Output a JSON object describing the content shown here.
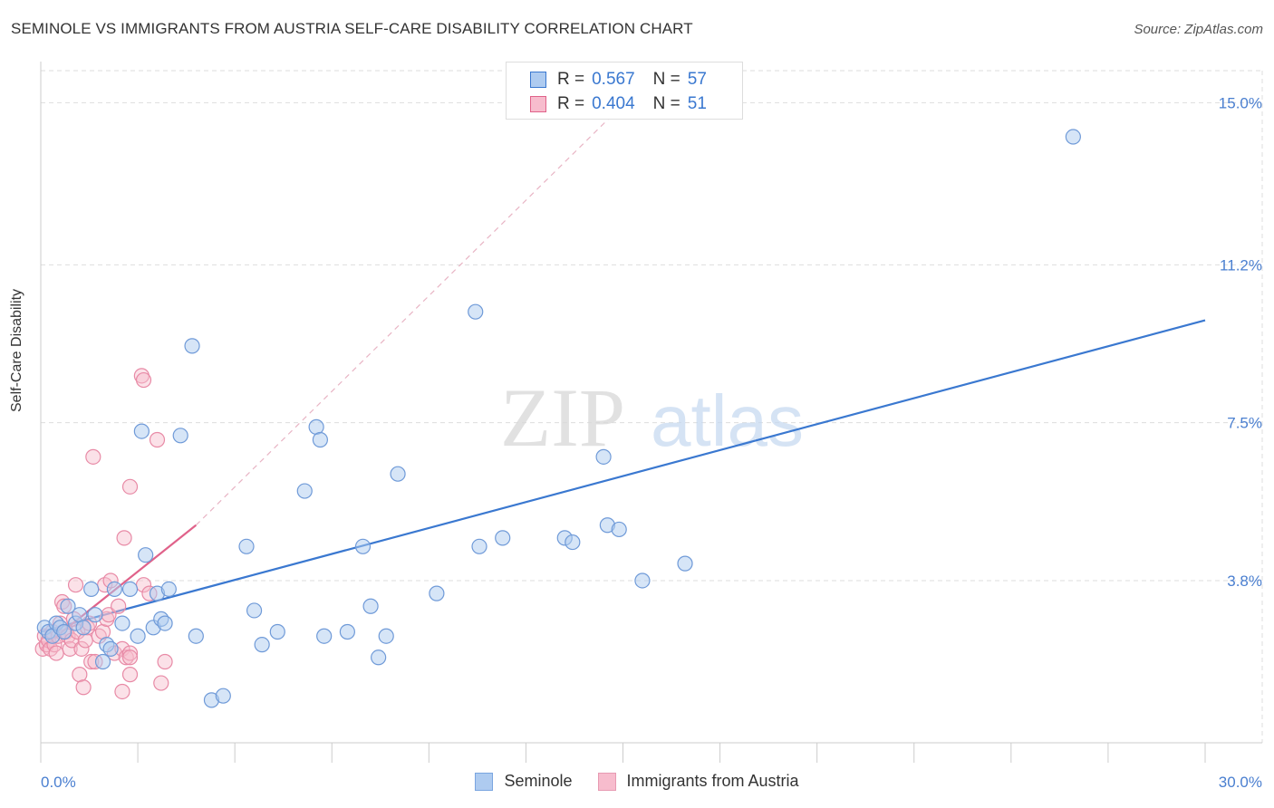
{
  "header": {
    "title": "SEMINOLE VS IMMIGRANTS FROM AUSTRIA SELF-CARE DISABILITY CORRELATION CHART",
    "source": "Source: ZipAtlas.com"
  },
  "watermark": {
    "zip": "ZIP",
    "atlas": "atlas"
  },
  "legend": {
    "items": [
      {
        "r_label": "R = ",
        "r_value": "0.567",
        "n_label": "N = ",
        "n_value": "57"
      },
      {
        "r_label": "R = ",
        "r_value": "0.404",
        "n_label": "N = ",
        "n_value": "51"
      }
    ]
  },
  "bottom_legend": [
    "Seminole",
    "Immigrants from Austria"
  ],
  "colors": {
    "blue": "#3a78d0",
    "blue_fill": "#aecbf0",
    "pink": "#e0628a",
    "pink_fill": "#f7bccd",
    "grid": "#dddddd",
    "tick_label": "#4a7fd0"
  },
  "chart_data": {
    "type": "scatter",
    "title": "SEMINOLE VS IMMIGRANTS FROM AUSTRIA SELF-CARE DISABILITY CORRELATION CHART",
    "xlabel": "",
    "ylabel": "Self-Care Disability",
    "xlim": [
      0,
      30
    ],
    "ylim": [
      0,
      15.75
    ],
    "x_tick_labels": [
      "0.0%",
      "30.0%"
    ],
    "y_ticks": [
      3.8,
      7.5,
      11.2,
      15.0
    ],
    "y_tick_labels": [
      "3.8%",
      "7.5%",
      "11.2%",
      "15.0%"
    ],
    "series": [
      {
        "name": "Seminole",
        "r": 0.567,
        "n": 57,
        "trend": {
          "x": [
            0,
            30
          ],
          "y": [
            2.6,
            9.9
          ]
        },
        "points": [
          [
            0.1,
            2.7
          ],
          [
            0.2,
            2.6
          ],
          [
            0.3,
            2.5
          ],
          [
            0.4,
            2.8
          ],
          [
            0.5,
            2.7
          ],
          [
            0.6,
            2.6
          ],
          [
            0.7,
            3.2
          ],
          [
            0.9,
            2.8
          ],
          [
            1.0,
            3.0
          ],
          [
            1.1,
            2.7
          ],
          [
            1.3,
            3.6
          ],
          [
            1.4,
            3.0
          ],
          [
            1.6,
            1.9
          ],
          [
            1.7,
            2.3
          ],
          [
            1.8,
            2.2
          ],
          [
            1.9,
            3.6
          ],
          [
            2.1,
            2.8
          ],
          [
            2.3,
            3.6
          ],
          [
            2.5,
            2.5
          ],
          [
            2.6,
            7.3
          ],
          [
            2.7,
            4.4
          ],
          [
            2.9,
            2.7
          ],
          [
            3.0,
            3.5
          ],
          [
            3.1,
            2.9
          ],
          [
            3.2,
            2.8
          ],
          [
            3.3,
            3.6
          ],
          [
            3.6,
            7.2
          ],
          [
            3.9,
            9.3
          ],
          [
            4.0,
            2.5
          ],
          [
            4.4,
            1.0
          ],
          [
            4.7,
            1.1
          ],
          [
            5.3,
            4.6
          ],
          [
            5.5,
            3.1
          ],
          [
            5.7,
            2.3
          ],
          [
            6.1,
            2.6
          ],
          [
            6.8,
            5.9
          ],
          [
            7.1,
            7.4
          ],
          [
            7.2,
            7.1
          ],
          [
            7.3,
            2.5
          ],
          [
            7.9,
            2.6
          ],
          [
            8.3,
            4.6
          ],
          [
            8.5,
            3.2
          ],
          [
            8.7,
            2.0
          ],
          [
            8.9,
            2.5
          ],
          [
            9.2,
            6.3
          ],
          [
            10.2,
            3.5
          ],
          [
            11.2,
            10.1
          ],
          [
            11.3,
            4.6
          ],
          [
            11.9,
            4.8
          ],
          [
            13.5,
            4.8
          ],
          [
            13.7,
            4.7
          ],
          [
            14.5,
            6.7
          ],
          [
            14.6,
            5.1
          ],
          [
            14.9,
            5.0
          ],
          [
            15.5,
            3.8
          ],
          [
            16.6,
            4.2
          ],
          [
            26.6,
            14.2
          ]
        ]
      },
      {
        "name": "Immigrants from Austria",
        "r": 0.404,
        "n": 51,
        "trend": {
          "x": [
            0,
            4.0
          ],
          "y": [
            2.2,
            5.1
          ]
        },
        "trend_extended": {
          "x": [
            4.0,
            15.5
          ],
          "y": [
            5.1,
            15.4
          ]
        },
        "points": [
          [
            0.05,
            2.2
          ],
          [
            0.1,
            2.5
          ],
          [
            0.15,
            2.3
          ],
          [
            0.2,
            2.4
          ],
          [
            0.25,
            2.2
          ],
          [
            0.3,
            2.6
          ],
          [
            0.35,
            2.3
          ],
          [
            0.4,
            2.1
          ],
          [
            0.45,
            2.5
          ],
          [
            0.5,
            2.8
          ],
          [
            0.55,
            3.3
          ],
          [
            0.6,
            3.2
          ],
          [
            0.65,
            2.6
          ],
          [
            0.7,
            2.5
          ],
          [
            0.75,
            2.2
          ],
          [
            0.8,
            2.4
          ],
          [
            0.85,
            2.9
          ],
          [
            0.9,
            3.7
          ],
          [
            0.95,
            2.6
          ],
          [
            1.0,
            1.6
          ],
          [
            1.05,
            2.2
          ],
          [
            1.1,
            1.3
          ],
          [
            1.15,
            2.4
          ],
          [
            1.2,
            2.7
          ],
          [
            1.25,
            2.8
          ],
          [
            1.3,
            1.9
          ],
          [
            1.35,
            6.7
          ],
          [
            1.4,
            1.9
          ],
          [
            1.5,
            2.5
          ],
          [
            1.6,
            2.6
          ],
          [
            1.65,
            3.7
          ],
          [
            1.7,
            2.9
          ],
          [
            1.75,
            3.0
          ],
          [
            1.8,
            3.8
          ],
          [
            1.9,
            2.1
          ],
          [
            2.0,
            3.2
          ],
          [
            2.1,
            2.2
          ],
          [
            2.2,
            2.0
          ],
          [
            2.1,
            1.2
          ],
          [
            2.15,
            4.8
          ],
          [
            2.3,
            2.1
          ],
          [
            2.3,
            1.6
          ],
          [
            2.3,
            6.0
          ],
          [
            2.6,
            8.6
          ],
          [
            2.65,
            8.5
          ],
          [
            2.65,
            3.7
          ],
          [
            2.8,
            3.5
          ],
          [
            3.0,
            7.1
          ],
          [
            3.1,
            1.4
          ],
          [
            3.2,
            1.9
          ],
          [
            2.3,
            2.0
          ]
        ]
      }
    ]
  }
}
